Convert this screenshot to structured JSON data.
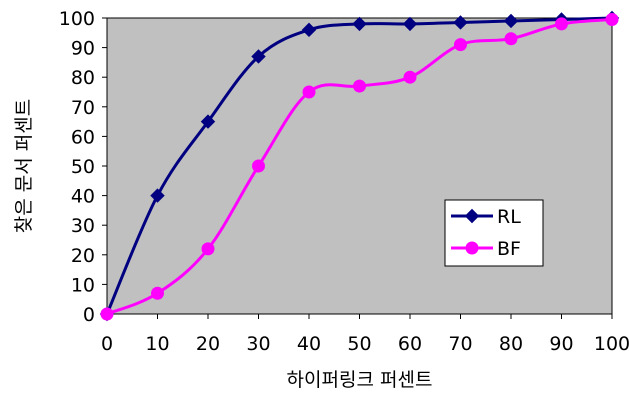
{
  "chart_data": {
    "type": "line",
    "xlabel": "하이퍼링크 퍼센트",
    "ylabel": "찾은 문서 퍼센트",
    "xlim": [
      0,
      100
    ],
    "ylim": [
      0,
      100
    ],
    "x_ticks": [
      "0",
      "10",
      "20",
      "30",
      "40",
      "50",
      "60",
      "70",
      "80",
      "90",
      "100"
    ],
    "y_ticks": [
      "0",
      "10",
      "20",
      "30",
      "40",
      "50",
      "60",
      "70",
      "80",
      "90",
      "100"
    ],
    "plot_background": "#c0c0c0",
    "grid": false,
    "legend_position": "right",
    "series": [
      {
        "name": "RL",
        "color": "#000080",
        "marker": "diamond",
        "x": [
          0,
          10,
          20,
          30,
          40,
          50,
          60,
          70,
          80,
          90,
          100
        ],
        "y": [
          0,
          40,
          65,
          87,
          96,
          98,
          98,
          98.5,
          99,
          99.5,
          100
        ]
      },
      {
        "name": "BF",
        "color": "#ff00ff",
        "marker": "circle",
        "x": [
          0,
          10,
          20,
          30,
          40,
          50,
          60,
          70,
          80,
          90,
          100
        ],
        "y": [
          0,
          7,
          22,
          50,
          75,
          77,
          80,
          91,
          93,
          98,
          99.5
        ]
      }
    ]
  }
}
